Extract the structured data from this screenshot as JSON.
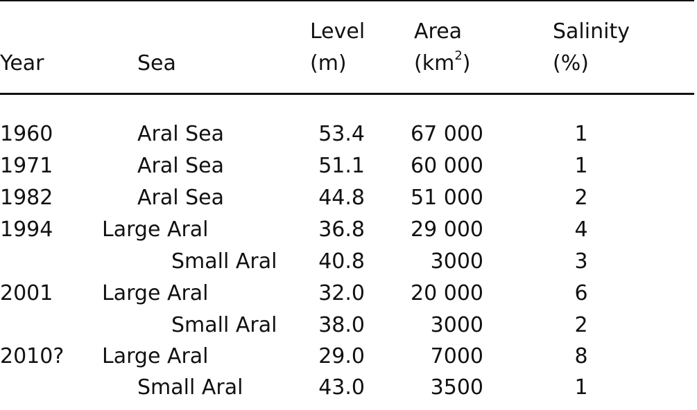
{
  "table": {
    "headers": {
      "year": "Year",
      "sea": "Sea",
      "level_line1": "Level",
      "level_line2": "(m)",
      "area_line1": "Area",
      "area_line2_pre": "(km",
      "area_line2_sup": "2",
      "area_line2_post": ")",
      "salinity_line1": "Salinity",
      "salinity_line2": "(%)"
    },
    "rows": [
      {
        "year": "1960",
        "sea": "Aral Sea",
        "level": "53.4",
        "area": "67 000",
        "salinity": "1"
      },
      {
        "year": "1971",
        "sea": "Aral Sea",
        "level": "51.1",
        "area": "60 000",
        "salinity": "1"
      },
      {
        "year": "1982",
        "sea": "Aral Sea",
        "level": "44.8",
        "area": "51 000",
        "salinity": "2"
      },
      {
        "year": "1994",
        "sea": "Large Aral",
        "level": "36.8",
        "area": "29 000",
        "salinity": "4"
      },
      {
        "year": "",
        "sea": "Small Aral",
        "level": "40.8",
        "area": "3000",
        "salinity": "3"
      },
      {
        "year": "2001",
        "sea": "Large Aral",
        "level": "32.0",
        "area": "20 000",
        "salinity": "6"
      },
      {
        "year": "",
        "sea": "Small Aral",
        "level": "38.0",
        "area": "3000",
        "salinity": "2"
      },
      {
        "year": "2010?",
        "sea": "Large Aral",
        "level": "29.0",
        "area": "7000",
        "salinity": "8"
      },
      {
        "year": "",
        "sea": "Small Aral",
        "level": "43.0",
        "area": "3500",
        "salinity": "1"
      }
    ]
  }
}
